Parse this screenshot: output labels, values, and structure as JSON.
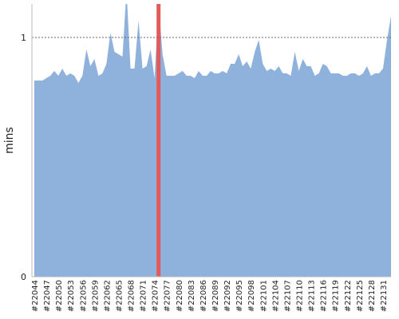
{
  "chart_data": {
    "type": "area",
    "y_label": "mins",
    "categories": [
      "#22044",
      null,
      null,
      "#22047",
      null,
      null,
      "#22050",
      null,
      null,
      "#22053",
      null,
      null,
      "#22056",
      null,
      null,
      "#22059",
      null,
      null,
      "#22062",
      null,
      null,
      "#22065",
      null,
      null,
      "#22068",
      null,
      null,
      "#22071",
      null,
      null,
      "#22074",
      null,
      null,
      "#22077",
      null,
      null,
      "#22080",
      null,
      null,
      "#22083",
      null,
      null,
      "#22086",
      null,
      null,
      "#22089",
      null,
      null,
      "#22092",
      null,
      null,
      "#22095",
      null,
      null,
      "#22098",
      null,
      null,
      "#22101",
      null,
      null,
      "#22104",
      null,
      null,
      "#22107",
      null,
      null,
      "#22110",
      null,
      null,
      "#22113",
      null,
      null,
      "#22116",
      null,
      null,
      "#22119",
      null,
      null,
      "#22122",
      null,
      null,
      "#22125",
      null,
      null,
      "#22128",
      null,
      null,
      "#22131",
      null,
      null
    ],
    "values": [
      0.82,
      0.82,
      0.82,
      0.83,
      0.84,
      0.86,
      0.84,
      0.87,
      0.84,
      0.85,
      0.84,
      0.81,
      0.84,
      0.95,
      0.88,
      0.91,
      0.84,
      0.85,
      0.89,
      1.02,
      0.94,
      0.93,
      0.92,
      1.2,
      0.87,
      0.87,
      1.07,
      0.87,
      0.88,
      0.95,
      0.83,
      1.14,
      0.93,
      0.84,
      0.84,
      0.84,
      0.85,
      0.86,
      0.84,
      0.84,
      0.83,
      0.86,
      0.84,
      0.84,
      0.86,
      0.85,
      0.85,
      0.86,
      0.85,
      0.89,
      0.89,
      0.93,
      0.88,
      0.9,
      0.87,
      0.94,
      0.99,
      0.89,
      0.86,
      0.87,
      0.86,
      0.88,
      0.85,
      0.85,
      0.84,
      0.94,
      0.86,
      0.91,
      0.88,
      0.88,
      0.84,
      0.85,
      0.89,
      0.88,
      0.85,
      0.85,
      0.85,
      0.84,
      0.84,
      0.85,
      0.85,
      0.84,
      0.85,
      0.88,
      0.84,
      0.85,
      0.85,
      0.87,
      0.99,
      1.09
    ],
    "color": "#8fb2dc",
    "ylim": [
      0,
      1.14
    ],
    "yticks": [
      0,
      1
    ],
    "grid": true,
    "highlight_index": 31,
    "highlight_color": "#e35a5a"
  }
}
